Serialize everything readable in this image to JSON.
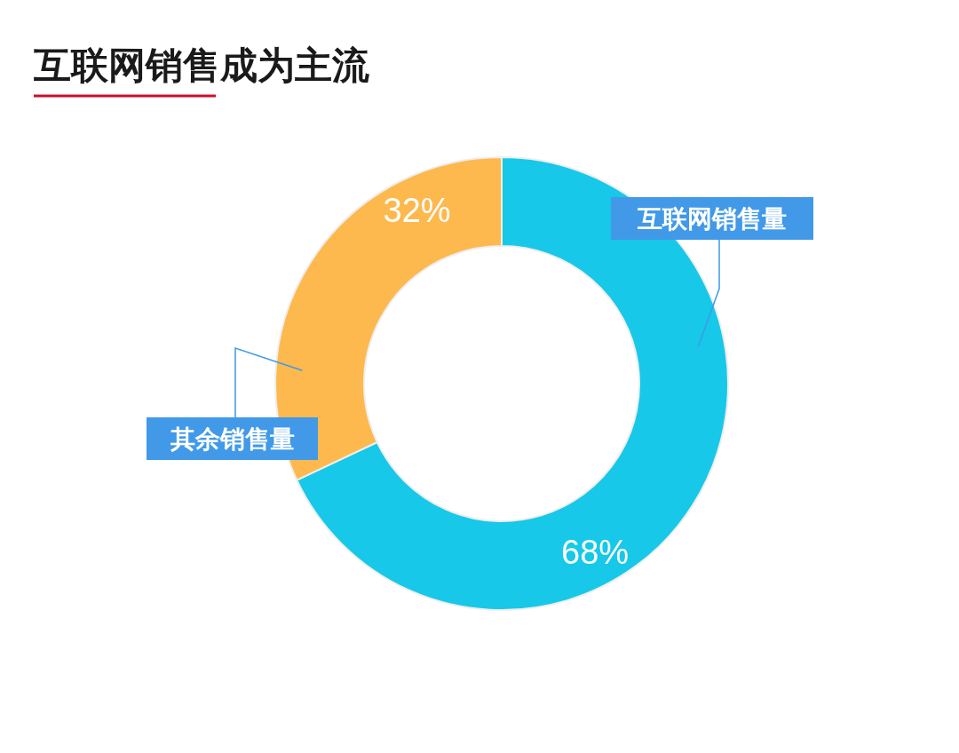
{
  "chart_data": {
    "type": "donut",
    "title": "互联网销售成为主流",
    "categories": [
      "互联网销售量",
      "其余销售量"
    ],
    "values": [
      68,
      32
    ],
    "colors": [
      "#17c8e8",
      "#fdb94e"
    ],
    "value_labels": [
      "68%",
      "32%"
    ]
  }
}
